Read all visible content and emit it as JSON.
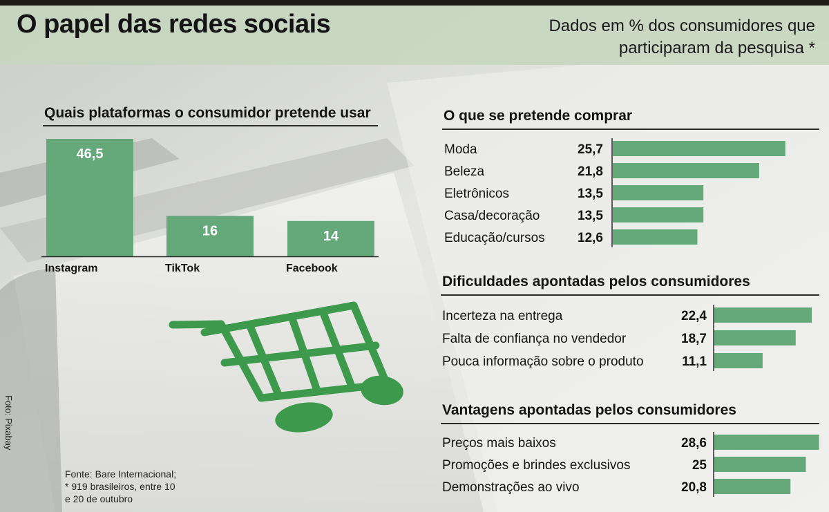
{
  "header": {
    "title": "O papel das redes sociais",
    "subtitle_line1": "Dados em % dos consumidores que",
    "subtitle_line2": "participaram da pesquisa *"
  },
  "colors": {
    "bar_green": "#65a87a",
    "cart_green": "#3d9a4c",
    "header_band": "#c6d6be"
  },
  "chart_data": [
    {
      "type": "bar",
      "title": "Quais plataformas o consumidor pretende usar",
      "categories": [
        "Instagram",
        "TikTok",
        "Facebook"
      ],
      "values": [
        46.5,
        16,
        14
      ],
      "value_labels": [
        "46,5",
        "16",
        "14"
      ]
    },
    {
      "type": "bar",
      "orientation": "horizontal",
      "title": "O que se pretende comprar",
      "categories": [
        "Moda",
        "Beleza",
        "Eletrônicos",
        "Casa/decoração",
        "Educação/cursos"
      ],
      "values": [
        25.7,
        21.8,
        13.5,
        13.5,
        12.6
      ],
      "value_labels": [
        "25,7",
        "21,8",
        "13,5",
        "13,5",
        "12,6"
      ]
    },
    {
      "type": "bar",
      "orientation": "horizontal",
      "title": "Dificuldades apontadas pelos consumidores",
      "categories": [
        "Incerteza na entrega",
        "Falta de confiança no vendedor",
        "Pouca informação sobre o produto"
      ],
      "values": [
        22.4,
        18.7,
        11.1
      ],
      "value_labels": [
        "22,4",
        "18,7",
        "11,1"
      ]
    },
    {
      "type": "bar",
      "orientation": "horizontal",
      "title": "Vantagens apontadas pelos consumidores",
      "categories": [
        "Preços mais baixos",
        "Promoções e brindes exclusivos",
        "Demonstrações ao vivo"
      ],
      "values": [
        28.6,
        25,
        20.8
      ],
      "value_labels": [
        "28,6",
        "25",
        "20,8"
      ]
    }
  ],
  "footer": {
    "source_line1": "Fonte: Bare Internacional;",
    "source_line2": "* 919 brasileiros, entre 10",
    "source_line3": "e 20 de outubro",
    "photo_credit": "Foto: Pixabay"
  },
  "icons": {
    "cart": "shopping-cart-icon"
  }
}
